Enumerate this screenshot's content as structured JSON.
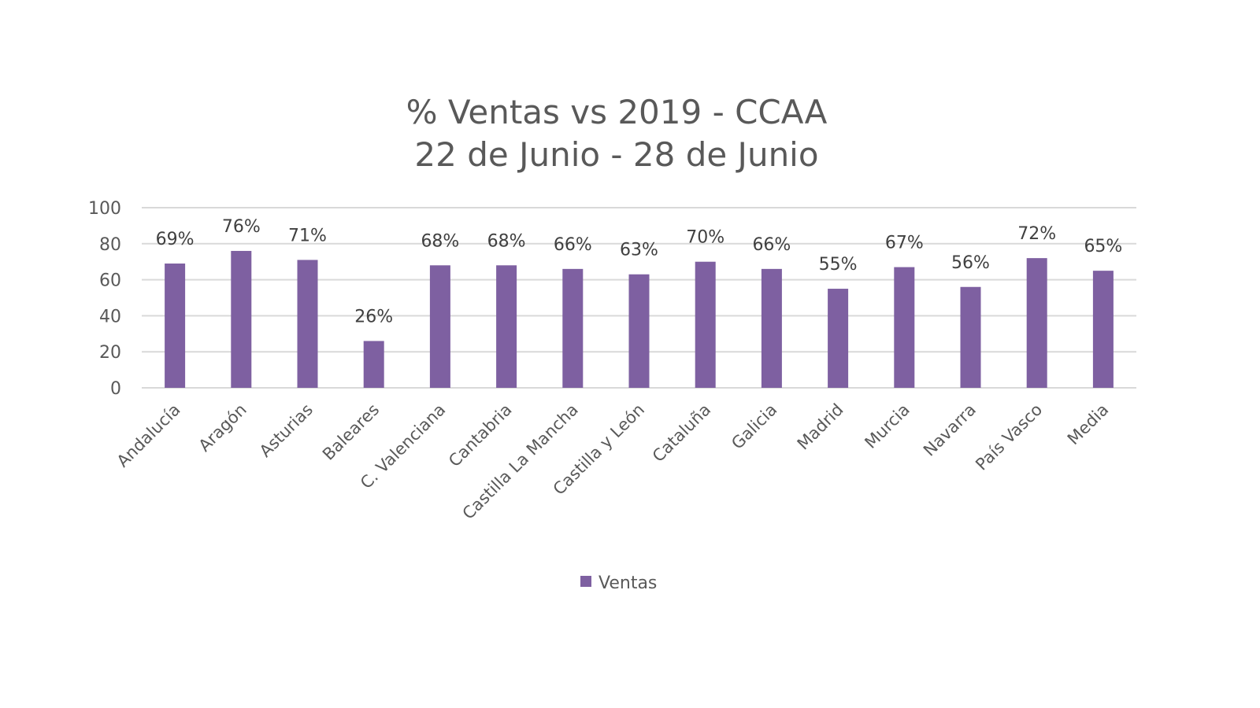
{
  "chart_data": {
    "type": "bar",
    "title": "% Ventas vs 2019 - CCAA",
    "subtitle": "22 de Junio - 28 de Junio",
    "xlabel": "",
    "ylabel": "",
    "ylim": [
      0,
      100
    ],
    "yticks": [
      0,
      20,
      40,
      60,
      80,
      100
    ],
    "ytick_labels": [
      "0",
      "20",
      "40",
      "60",
      "80",
      "100"
    ],
    "grid": true,
    "legend_position": "bottom",
    "categories": [
      "Andalucía",
      "Aragón",
      "Asturias",
      "Baleares",
      "C. Valenciana",
      "Cantabria",
      "Castilla La Mancha",
      "Castilla y León",
      "Cataluña",
      "Galicia",
      "Madrid",
      "Murcia",
      "Navarra",
      "País Vasco",
      "Media"
    ],
    "series": [
      {
        "name": "Ventas",
        "color": "#7E60A1",
        "values": [
          69,
          76,
          71,
          26,
          68,
          68,
          66,
          63,
          70,
          66,
          55,
          67,
          56,
          72,
          65
        ],
        "data_labels": [
          "69%",
          "76%",
          "71%",
          "26%",
          "68%",
          "68%",
          "66%",
          "63%",
          "70%",
          "66%",
          "55%",
          "67%",
          "56%",
          "72%",
          "65%"
        ]
      }
    ]
  }
}
